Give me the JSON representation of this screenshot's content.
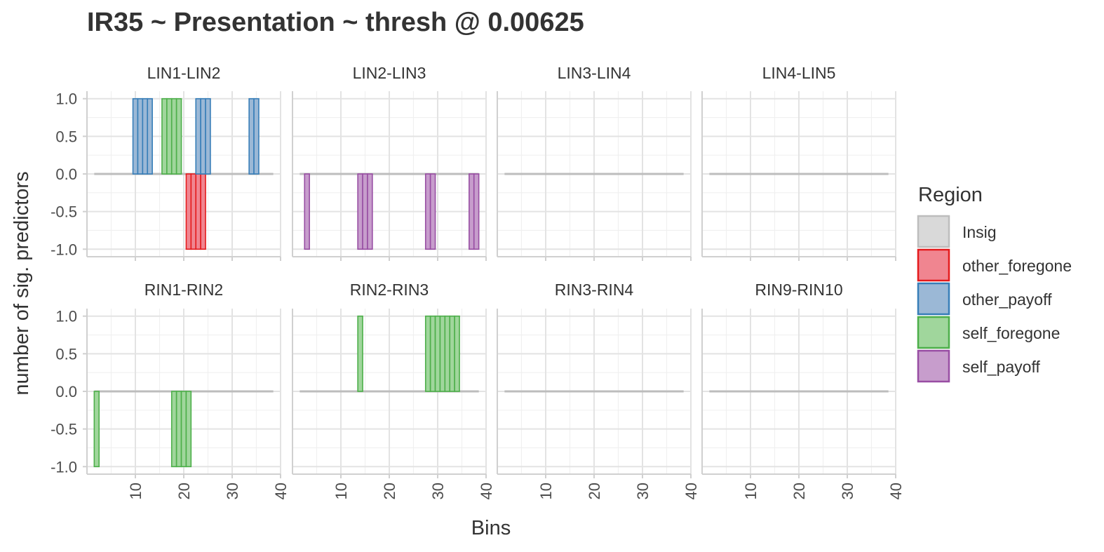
{
  "chart_data": {
    "type": "bar",
    "title": "IR35 ~ Presentation ~ thresh @ 0.00625",
    "xlabel": "Bins",
    "ylabel": "number of sig. predictors",
    "xlim": [
      0,
      40
    ],
    "ylim": [
      -1.1,
      1.1
    ],
    "x_ticks": [
      10,
      20,
      30,
      40
    ],
    "y_ticks": [
      -1.0,
      -0.5,
      0.0,
      0.5,
      1.0
    ],
    "y_tick_labels": [
      "-1.0",
      "-0.5",
      "0.0",
      "0.5",
      "1.0"
    ],
    "x_range_bins": [
      2,
      38
    ],
    "grid": true,
    "legend": {
      "title": "Region",
      "placement": "right",
      "entries": [
        {
          "name": "Insig",
          "fill": "#d9d9d9",
          "stroke": "#bdbdbd"
        },
        {
          "name": "other_foregone",
          "fill": "#f08590",
          "stroke": "#e41a1c"
        },
        {
          "name": "other_payoff",
          "fill": "#9bb8d6",
          "stroke": "#377eb8"
        },
        {
          "name": "self_foregone",
          "fill": "#a0d69c",
          "stroke": "#4daf4a"
        },
        {
          "name": "self_payoff",
          "fill": "#c79dcc",
          "stroke": "#984ea3"
        }
      ]
    },
    "panels": [
      {
        "name": "LIN1-LIN2",
        "bars": [
          {
            "region": "other_payoff",
            "value": 1,
            "bins": [
              10,
              11,
              12,
              13
            ]
          },
          {
            "region": "self_foregone",
            "value": 1,
            "bins": [
              16,
              17,
              18,
              19
            ]
          },
          {
            "region": "other_foregone",
            "value": -1,
            "bins": [
              21,
              22,
              23,
              24
            ]
          },
          {
            "region": "other_payoff",
            "value": 1,
            "bins": [
              23,
              24,
              25
            ]
          },
          {
            "region": "other_payoff",
            "value": 1,
            "bins": [
              34,
              35
            ]
          }
        ]
      },
      {
        "name": "LIN2-LIN3",
        "bars": [
          {
            "region": "self_payoff",
            "value": -1,
            "bins": [
              3
            ]
          },
          {
            "region": "self_payoff",
            "value": -1,
            "bins": [
              14,
              15,
              16
            ]
          },
          {
            "region": "self_payoff",
            "value": -1,
            "bins": [
              28,
              29
            ]
          },
          {
            "region": "self_payoff",
            "value": -1,
            "bins": [
              37,
              38
            ]
          }
        ]
      },
      {
        "name": "LIN3-LIN4",
        "bars": []
      },
      {
        "name": "LIN4-LIN5",
        "bars": []
      },
      {
        "name": "RIN1-RIN2",
        "bars": [
          {
            "region": "self_foregone",
            "value": -1,
            "bins": [
              2
            ]
          },
          {
            "region": "self_foregone",
            "value": -1,
            "bins": [
              18,
              19,
              20,
              21
            ]
          }
        ]
      },
      {
        "name": "RIN2-RIN3",
        "bars": [
          {
            "region": "self_foregone",
            "value": 1,
            "bins": [
              14
            ]
          },
          {
            "region": "self_foregone",
            "value": 1,
            "bins": [
              28,
              29,
              30,
              31,
              32,
              33,
              34
            ]
          }
        ]
      },
      {
        "name": "RIN3-RIN4",
        "bars": []
      },
      {
        "name": "RIN9-RIN10",
        "bars": []
      }
    ]
  }
}
